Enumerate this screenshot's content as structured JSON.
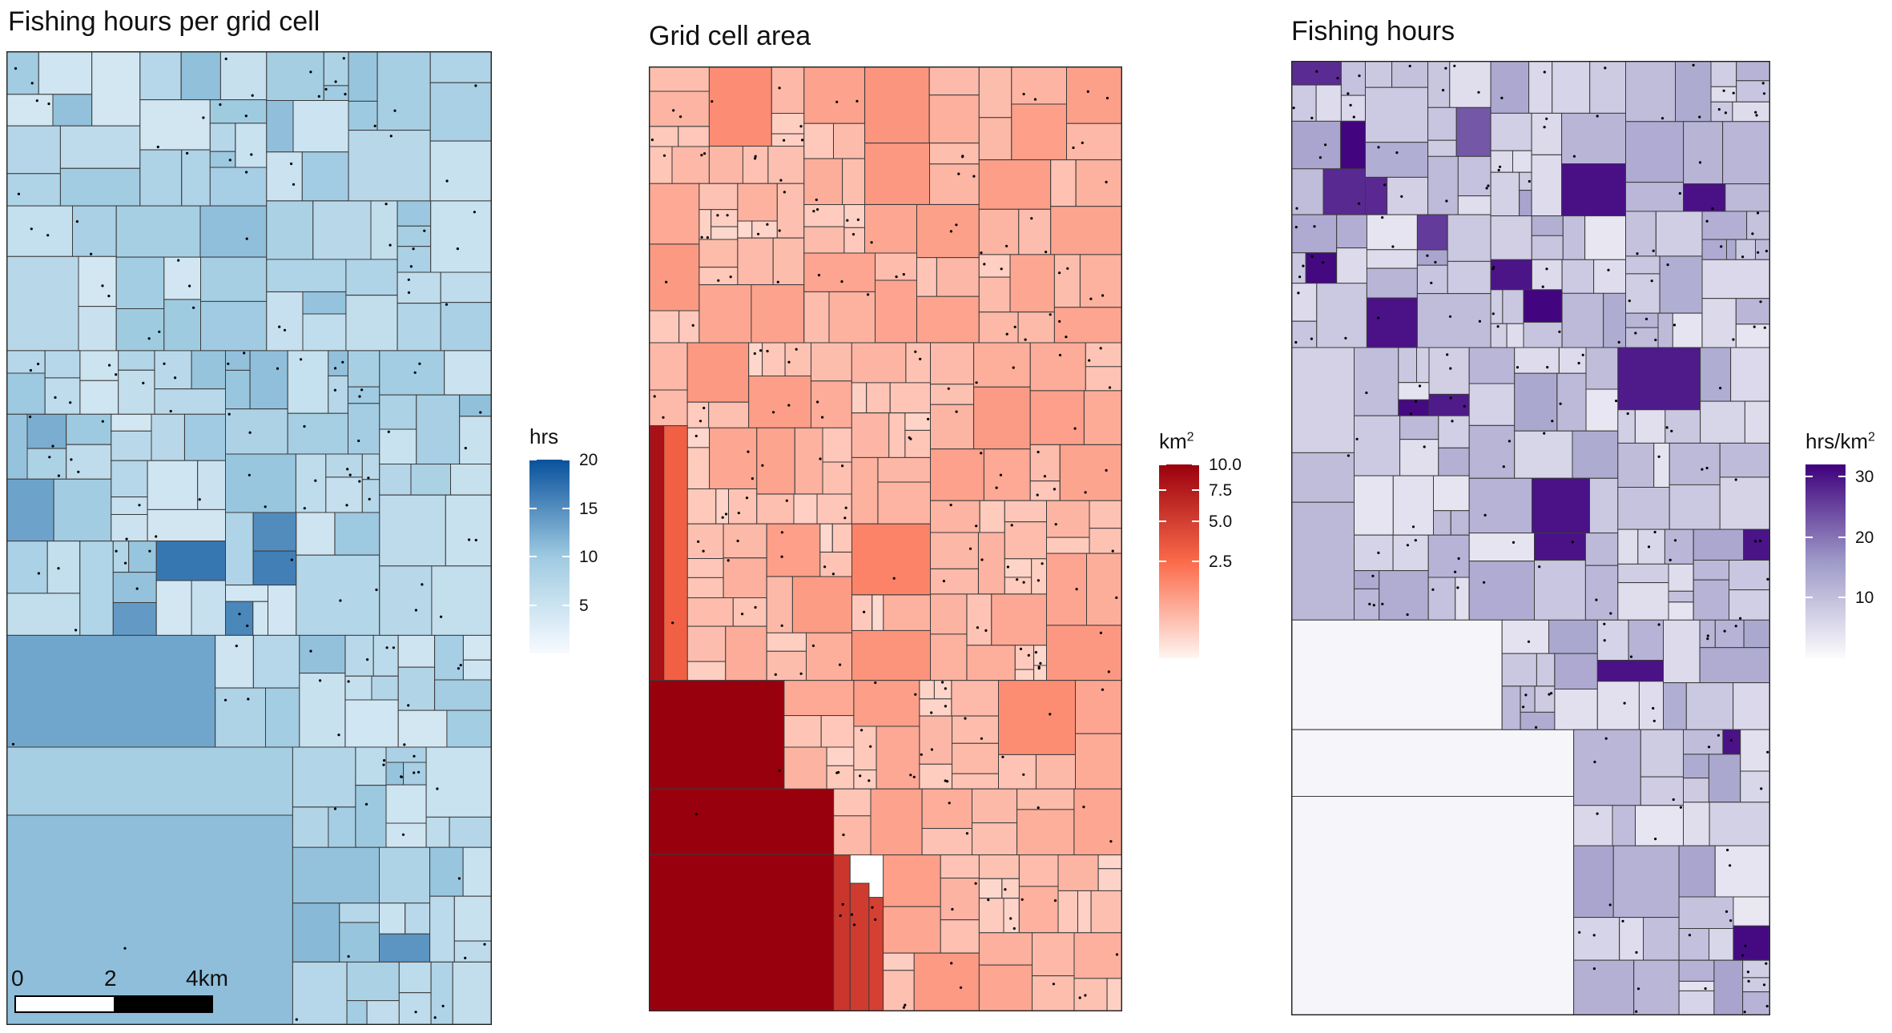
{
  "chart_data": [
    {
      "type": "heatmap",
      "subtype": "adaptive-grid choropleth map with observation points",
      "title": "Fishing hours per grid cell",
      "legend": {
        "title": "hrs",
        "unit_sup": "",
        "ticks": [
          5,
          10,
          15,
          20
        ],
        "range": [
          0,
          20
        ],
        "placement": "right"
      },
      "colors": {
        "low": "#f7fbff",
        "mid": "#9ecae1",
        "high": "#08519c",
        "point": "#000000",
        "border": "#3a3a3a"
      },
      "scalebar": {
        "labels": [
          "0",
          "2",
          "4km"
        ]
      },
      "large_cells_hours": [
        13,
        9,
        11
      ]
    },
    {
      "type": "heatmap",
      "subtype": "adaptive-grid choropleth map with observation points",
      "title": "Grid cell area",
      "legend": {
        "title": "km",
        "unit_sup": "2",
        "ticks": [
          2.5,
          5.0,
          7.5,
          10.0
        ],
        "tick_labels": [
          "2.5",
          "5.0",
          "7.5",
          "10.0"
        ],
        "range": [
          0,
          10
        ],
        "scale": "sqrt",
        "placement": "right"
      },
      "colors": {
        "low": "#fff5f0",
        "mid": "#fb6a4a",
        "high": "#99000d",
        "point": "#000000",
        "border": "#3a3a3a"
      },
      "large_cells_area_km2": [
        10.0,
        10.0,
        10.0,
        7.5,
        7.0
      ]
    },
    {
      "type": "heatmap",
      "subtype": "adaptive-grid choropleth map with observation points",
      "title": "Fishing hours",
      "legend": {
        "title": "hrs/km",
        "unit_sup": "2",
        "ticks": [
          10,
          20,
          30
        ],
        "range": [
          0,
          32
        ],
        "placement": "right"
      },
      "colors": {
        "low": "#fcfbfd",
        "mid": "#9e9ac8",
        "high": "#3f007d",
        "point": "#000000",
        "border": "#3a3a3a"
      },
      "large_cells_density": [
        1,
        1,
        1
      ]
    }
  ]
}
